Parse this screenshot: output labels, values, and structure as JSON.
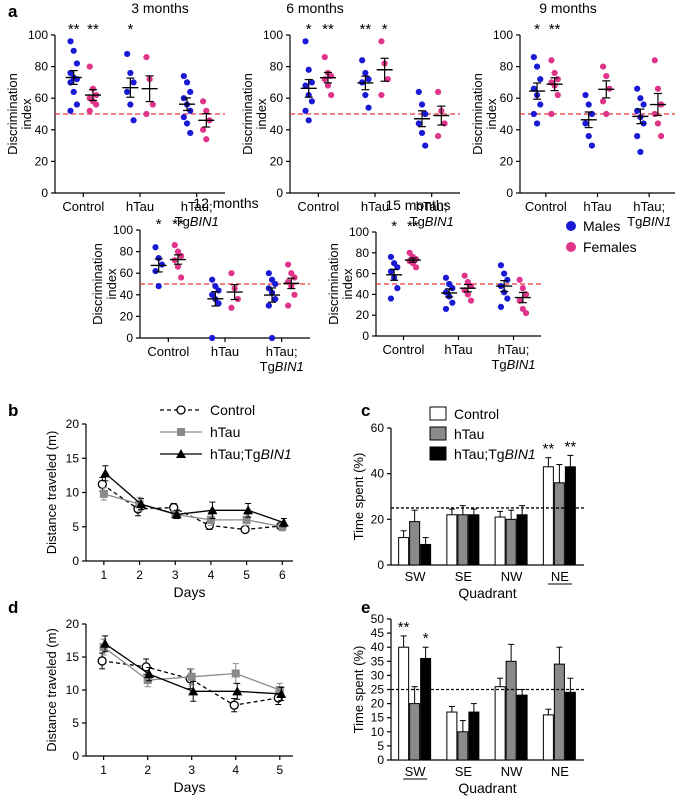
{
  "panel_letters": [
    "a",
    "b",
    "c",
    "d",
    "e"
  ],
  "legend_sex": {
    "males": "Males",
    "females": "Females",
    "male_color": "#1a1ad6",
    "female_color": "#e0348a"
  },
  "reference_line": 50,
  "chart_data": [
    {
      "panel": "a",
      "type": "scatter",
      "title": "3 months",
      "ylabel": "Discrimination index",
      "ylim": [
        0,
        100
      ],
      "yticks": [
        0,
        20,
        40,
        60,
        80,
        100
      ],
      "groups": [
        {
          "name": "Control",
          "second_line": "",
          "males": [
            96,
            90,
            82,
            76,
            73,
            72,
            70,
            64,
            56,
            52
          ],
          "females": [
            80,
            66,
            62,
            60,
            58,
            56,
            52
          ],
          "male_sig": "**",
          "female_sig": "**"
        },
        {
          "name": "hTau",
          "second_line": "",
          "males": [
            88,
            76,
            70,
            64,
            56,
            46
          ],
          "females": [
            86,
            72,
            56,
            50
          ],
          "male_sig": "*",
          "female_sig": ""
        },
        {
          "name": "hTau;",
          "second_line": "TgBIN1",
          "males": [
            74,
            70,
            64,
            60,
            56,
            52,
            48,
            44,
            38
          ],
          "females": [
            58,
            52,
            46,
            40,
            34
          ],
          "male_sig": "",
          "female_sig": ""
        }
      ]
    },
    {
      "panel": "a",
      "type": "scatter",
      "title": "6 months",
      "ylabel": "Discrimination index",
      "ylim": [
        0,
        100
      ],
      "yticks": [
        0,
        20,
        40,
        60,
        80,
        100
      ],
      "groups": [
        {
          "name": "Control",
          "second_line": "",
          "males": [
            96,
            78,
            70,
            68,
            62,
            58,
            52,
            46
          ],
          "females": [
            86,
            76,
            74,
            72,
            68,
            62
          ],
          "male_sig": "*",
          "female_sig": "**"
        },
        {
          "name": "hTau",
          "second_line": "",
          "males": [
            84,
            76,
            72,
            70,
            62,
            54
          ],
          "females": [
            96,
            82,
            72,
            62
          ],
          "male_sig": "**",
          "female_sig": "*"
        },
        {
          "name": "hTau;",
          "second_line": "TgBIN1",
          "males": [
            64,
            56,
            50,
            44,
            38,
            30
          ],
          "females": [
            64,
            52,
            44,
            36
          ],
          "male_sig": "",
          "female_sig": ""
        }
      ]
    },
    {
      "panel": "a",
      "type": "scatter",
      "title": "9 months",
      "ylabel": "Discrimination index",
      "ylim": [
        0,
        100
      ],
      "yticks": [
        0,
        20,
        40,
        60,
        80,
        100
      ],
      "groups": [
        {
          "name": "Control",
          "second_line": "",
          "males": [
            86,
            80,
            72,
            66,
            62,
            56,
            50,
            44
          ],
          "females": [
            84,
            76,
            72,
            70,
            68,
            62,
            50
          ],
          "male_sig": "*",
          "female_sig": "**"
        },
        {
          "name": "hTau",
          "second_line": "",
          "males": [
            62,
            56,
            50,
            44,
            36,
            30
          ],
          "females": [
            80,
            74,
            66,
            58,
            50
          ],
          "male_sig": "",
          "female_sig": ""
        },
        {
          "name": "hTau;",
          "second_line": "TgBIN1",
          "males": [
            66,
            60,
            56,
            52,
            48,
            44,
            36,
            26
          ],
          "females": [
            84,
            66,
            56,
            50,
            44,
            36
          ],
          "male_sig": "",
          "female_sig": ""
        }
      ]
    },
    {
      "panel": "a",
      "type": "scatter",
      "title": "12 months",
      "ylabel": "Discrimination index",
      "ylim": [
        0,
        100
      ],
      "yticks": [
        0,
        20,
        40,
        60,
        80,
        100
      ],
      "groups": [
        {
          "name": "Control",
          "second_line": "",
          "males": [
            84,
            74,
            68,
            62,
            48
          ],
          "females": [
            86,
            80,
            76,
            72,
            66,
            56
          ],
          "male_sig": "*",
          "female_sig": "**"
        },
        {
          "name": "hTau",
          "second_line": "",
          "males": [
            54,
            48,
            44,
            40,
            36,
            32,
            0
          ],
          "females": [
            60,
            46,
            36,
            28
          ],
          "male_sig": "",
          "female_sig": ""
        },
        {
          "name": "hTau;",
          "second_line": "TgBIN1",
          "males": [
            60,
            54,
            50,
            46,
            42,
            36,
            30,
            0
          ],
          "females": [
            68,
            60,
            56,
            52,
            48,
            40,
            30
          ],
          "male_sig": "",
          "female_sig": ""
        }
      ]
    },
    {
      "panel": "a",
      "type": "scatter",
      "title": "15 months",
      "ylabel": "Discrimination index",
      "ylim": [
        0,
        100
      ],
      "yticks": [
        0,
        20,
        40,
        60,
        80,
        100
      ],
      "groups": [
        {
          "name": "Control",
          "second_line": "",
          "males": [
            76,
            70,
            66,
            62,
            56,
            46,
            36
          ],
          "females": [
            80,
            76,
            74,
            72,
            70,
            66
          ],
          "male_sig": "*",
          "female_sig": "**"
        },
        {
          "name": "hTau",
          "second_line": "",
          "males": [
            56,
            50,
            46,
            42,
            38,
            32,
            26
          ],
          "females": [
            58,
            52,
            48,
            44,
            40,
            34
          ],
          "male_sig": "",
          "female_sig": ""
        },
        {
          "name": "hTau;",
          "second_line": "TgBIN1",
          "males": [
            68,
            60,
            54,
            48,
            42,
            36,
            28
          ],
          "females": [
            54,
            46,
            40,
            34,
            26,
            22
          ],
          "male_sig": "",
          "female_sig": ""
        }
      ]
    },
    {
      "panel": "b",
      "type": "line",
      "xlabel": "Days",
      "ylabel": "Distance traveled (m)",
      "x": [
        1,
        2,
        3,
        4,
        5,
        6
      ],
      "ylim": [
        0,
        20
      ],
      "yticks": [
        0,
        5,
        10,
        15,
        20
      ],
      "legend": "top-center",
      "series": [
        {
          "name": "Control",
          "values": [
            11.2,
            7.6,
            7.8,
            5.2,
            4.6,
            5.1
          ],
          "errors": [
            1.0,
            1.0,
            0.6,
            0.6,
            0.3,
            0.5
          ],
          "style": "open-circle-dashed"
        },
        {
          "name": "hTau",
          "values": [
            9.8,
            8.3,
            6.8,
            6.0,
            6.0,
            5.0
          ],
          "errors": [
            0.9,
            1.0,
            0.5,
            0.8,
            0.8,
            0.6
          ],
          "style": "gray-square"
        },
        {
          "name": "hTau;TgBIN1",
          "values": [
            12.8,
            8.3,
            6.8,
            7.4,
            7.4,
            5.6
          ],
          "errors": [
            1.1,
            0.8,
            0.6,
            1.2,
            1.0,
            0.6
          ],
          "style": "black-triangle"
        }
      ]
    },
    {
      "panel": "c",
      "type": "bar",
      "xlabel": "Quadrant",
      "ylabel": "Time spent (%)",
      "categories": [
        "SW",
        "SE",
        "NW",
        "NE"
      ],
      "underlined_category": "NE",
      "ylim": [
        0,
        60
      ],
      "yticks": [
        0,
        20,
        40,
        60
      ],
      "reference_line": 25,
      "legend": "top",
      "series": [
        {
          "name": "Control",
          "values": [
            12,
            22,
            21,
            43
          ],
          "errors": [
            3,
            2.5,
            2.5,
            4
          ]
        },
        {
          "name": "hTau",
          "values": [
            19,
            22,
            20,
            36
          ],
          "errors": [
            5,
            4,
            4,
            8
          ]
        },
        {
          "name": "hTau;TgBIN1",
          "values": [
            9,
            22,
            22,
            43
          ],
          "errors": [
            3,
            2.5,
            4,
            5
          ]
        }
      ],
      "annotations": [
        {
          "category": "NE",
          "series": "Control",
          "text": "**"
        },
        {
          "category": "NE",
          "series": "hTau;TgBIN1",
          "text": "**"
        }
      ]
    },
    {
      "panel": "d",
      "type": "line",
      "xlabel": "Days",
      "ylabel": "Distance traveled (m)",
      "x": [
        1,
        2,
        3,
        4,
        5
      ],
      "ylim": [
        0,
        20
      ],
      "yticks": [
        0,
        5,
        10,
        15,
        20
      ],
      "series": [
        {
          "name": "Control",
          "values": [
            14.4,
            13.5,
            11.7,
            7.7,
            8.8
          ],
          "errors": [
            1.2,
            1.2,
            1.5,
            1.0,
            1.0
          ],
          "style": "open-circle-dashed"
        },
        {
          "name": "hTau",
          "values": [
            16.5,
            11.5,
            12.0,
            12.5,
            10.0
          ],
          "errors": [
            1.2,
            1.0,
            1.2,
            1.5,
            1.0
          ],
          "style": "gray-square"
        },
        {
          "name": "hTau;TgBIN1",
          "values": [
            17.0,
            12.4,
            9.8,
            9.8,
            9.4
          ],
          "errors": [
            1.2,
            1.0,
            1.5,
            1.2,
            1.0
          ],
          "style": "black-triangle"
        }
      ]
    },
    {
      "panel": "e",
      "type": "bar",
      "xlabel": "Quadrant",
      "ylabel": "Time spent (%)",
      "categories": [
        "SW",
        "SE",
        "NW",
        "NE"
      ],
      "underlined_category": "SW",
      "ylim": [
        0,
        50
      ],
      "yticks": [
        0,
        5,
        10,
        15,
        20,
        25,
        30,
        35,
        40,
        45,
        50
      ],
      "reference_line": 25,
      "series": [
        {
          "name": "Control",
          "values": [
            40,
            17,
            26,
            16
          ],
          "errors": [
            4,
            2,
            3,
            2
          ]
        },
        {
          "name": "hTau",
          "values": [
            20,
            10,
            35,
            34
          ],
          "errors": [
            6,
            4,
            6,
            6
          ]
        },
        {
          "name": "hTau;TgBIN1",
          "values": [
            36,
            17,
            23,
            24
          ],
          "errors": [
            4,
            3,
            2,
            5
          ]
        }
      ],
      "annotations": [
        {
          "category": "SW",
          "series": "Control",
          "text": "**"
        },
        {
          "category": "SW",
          "series": "hTau;TgBIN1",
          "text": "*"
        }
      ]
    }
  ]
}
